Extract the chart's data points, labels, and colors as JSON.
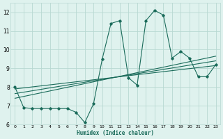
{
  "xlabel": "Humidex (Indice chaleur)",
  "bg_color": "#dff2ee",
  "grid_color": "#b8d8d2",
  "line_color": "#1a6b5a",
  "xlim": [
    -0.5,
    23.5
  ],
  "ylim": [
    6,
    12.5
  ],
  "yticks": [
    6,
    7,
    8,
    9,
    10,
    11,
    12
  ],
  "xticks": [
    0,
    1,
    2,
    3,
    4,
    5,
    6,
    7,
    8,
    9,
    10,
    11,
    12,
    13,
    14,
    15,
    16,
    17,
    18,
    19,
    20,
    21,
    22,
    23
  ],
  "main_x": [
    0,
    1,
    2,
    3,
    4,
    5,
    6,
    7,
    8,
    9,
    10,
    11,
    12,
    13,
    14,
    15,
    16,
    17,
    18,
    19,
    20,
    21,
    22,
    23
  ],
  "main_y": [
    8.0,
    6.9,
    6.85,
    6.85,
    6.85,
    6.85,
    6.85,
    6.65,
    6.1,
    7.1,
    9.5,
    11.4,
    11.55,
    8.5,
    8.1,
    11.55,
    12.1,
    11.85,
    9.55,
    9.9,
    9.55,
    8.55,
    8.55,
    9.2
  ],
  "trend1_x": [
    0,
    23
  ],
  "trend1_y": [
    7.9,
    9.15
  ],
  "trend2_x": [
    0,
    23
  ],
  "trend2_y": [
    7.65,
    9.4
  ],
  "trend3_x": [
    0,
    23
  ],
  "trend3_y": [
    7.4,
    9.65
  ]
}
